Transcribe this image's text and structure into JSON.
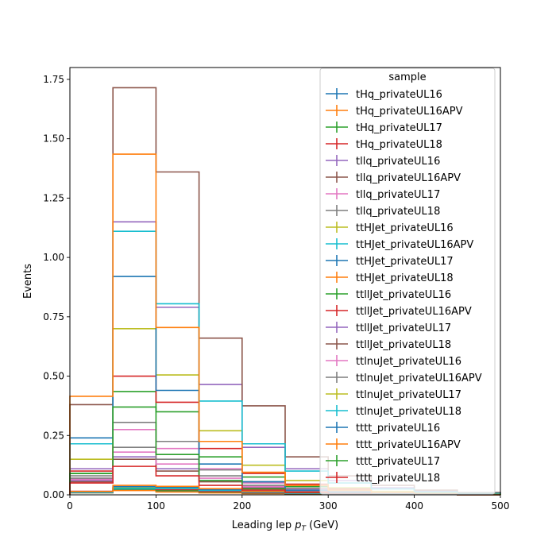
{
  "chart_data": {
    "type": "step-histogram",
    "xlabel_main": "Leading lep ",
    "xlabel_math_base": "p",
    "xlabel_math_sub": "T",
    "xlabel_unit": " (GeV)",
    "ylabel": "Events",
    "xlim": [
      0,
      500
    ],
    "ylim": [
      0,
      1.8
    ],
    "bin_edges": [
      0,
      50,
      100,
      150,
      200,
      250,
      300,
      350,
      400,
      450,
      500
    ],
    "x_ticks": [
      "0",
      "100",
      "200",
      "300",
      "400",
      "500"
    ],
    "y_ticks": [
      "0.00",
      "0.25",
      "0.50",
      "0.75",
      "1.00",
      "1.25",
      "1.50",
      "1.75"
    ],
    "legend_title": "sample",
    "legend_loc": "upper right",
    "series": [
      {
        "name": "tHq_privateUL16",
        "color": "#1f77b4",
        "values": [
          0.01,
          0.02,
          0.015,
          0.01,
          0.006,
          0.004,
          0.002,
          0.001,
          0.001,
          0.0
        ]
      },
      {
        "name": "tHq_privateUL16APV",
        "color": "#ff7f0e",
        "values": [
          0.008,
          0.018,
          0.012,
          0.008,
          0.005,
          0.003,
          0.002,
          0.001,
          0.001,
          0.0
        ]
      },
      {
        "name": "tHq_privateUL17",
        "color": "#2ca02c",
        "values": [
          0.012,
          0.025,
          0.018,
          0.012,
          0.007,
          0.004,
          0.002,
          0.001,
          0.001,
          0.0
        ]
      },
      {
        "name": "tHq_privateUL18",
        "color": "#d62728",
        "values": [
          0.015,
          0.03,
          0.022,
          0.014,
          0.008,
          0.005,
          0.003,
          0.002,
          0.001,
          0.001
        ]
      },
      {
        "name": "tllq_privateUL16",
        "color": "#9467bd",
        "values": [
          0.06,
          0.16,
          0.11,
          0.06,
          0.03,
          0.015,
          0.008,
          0.004,
          0.002,
          0.001
        ]
      },
      {
        "name": "tllq_privateUL16APV",
        "color": "#8c564b",
        "values": [
          0.055,
          0.15,
          0.1,
          0.055,
          0.028,
          0.014,
          0.007,
          0.004,
          0.002,
          0.001
        ]
      },
      {
        "name": "tllq_privateUL17",
        "color": "#e377c2",
        "values": [
          0.07,
          0.18,
          0.13,
          0.07,
          0.035,
          0.018,
          0.009,
          0.005,
          0.002,
          0.001
        ]
      },
      {
        "name": "tllq_privateUL18",
        "color": "#7f7f7f",
        "values": [
          0.08,
          0.2,
          0.15,
          0.08,
          0.04,
          0.02,
          0.01,
          0.005,
          0.003,
          0.001
        ]
      },
      {
        "name": "ttHJet_privateUL16",
        "color": "#bcbd22",
        "values": [
          0.01,
          0.03,
          0.028,
          0.02,
          0.012,
          0.007,
          0.004,
          0.002,
          0.001,
          0.001
        ]
      },
      {
        "name": "ttHJet_privateUL16APV",
        "color": "#17becf",
        "values": [
          0.009,
          0.028,
          0.026,
          0.018,
          0.011,
          0.006,
          0.004,
          0.002,
          0.001,
          0.001
        ]
      },
      {
        "name": "ttHJet_privateUL17",
        "color": "#1f77b4",
        "values": [
          0.012,
          0.035,
          0.032,
          0.022,
          0.013,
          0.008,
          0.005,
          0.003,
          0.001,
          0.001
        ]
      },
      {
        "name": "ttHJet_privateUL18",
        "color": "#ff7f0e",
        "values": [
          0.014,
          0.04,
          0.036,
          0.026,
          0.015,
          0.009,
          0.005,
          0.003,
          0.002,
          0.001
        ]
      },
      {
        "name": "ttllJet_privateUL16",
        "color": "#2ca02c",
        "values": [
          0.09,
          0.435,
          0.35,
          0.16,
          0.075,
          0.035,
          0.02,
          0.01,
          0.005,
          0.003
        ]
      },
      {
        "name": "ttllJet_privateUL16APV",
        "color": "#d62728",
        "values": [
          0.1,
          0.5,
          0.39,
          0.195,
          0.09,
          0.045,
          0.025,
          0.012,
          0.006,
          0.003
        ]
      },
      {
        "name": "ttllJet_privateUL17",
        "color": "#9467bd",
        "values": [
          0.11,
          1.15,
          0.79,
          0.465,
          0.2,
          0.11,
          0.06,
          0.03,
          0.015,
          0.008
        ]
      },
      {
        "name": "ttllJet_privateUL18",
        "color": "#8c564b",
        "values": [
          0.38,
          1.715,
          1.36,
          0.66,
          0.375,
          0.16,
          0.08,
          0.04,
          0.02,
          0.01
        ]
      },
      {
        "name": "ttlnuJet_privateUL16",
        "color": "#e377c2",
        "values": [
          0.065,
          0.275,
          0.195,
          0.11,
          0.05,
          0.025,
          0.012,
          0.006,
          0.003,
          0.002
        ]
      },
      {
        "name": "ttlnuJet_privateUL16APV",
        "color": "#7f7f7f",
        "values": [
          0.07,
          0.305,
          0.225,
          0.105,
          0.055,
          0.028,
          0.014,
          0.007,
          0.003,
          0.002
        ]
      },
      {
        "name": "ttlnuJet_privateUL17",
        "color": "#bcbd22",
        "values": [
          0.15,
          0.7,
          0.505,
          0.27,
          0.125,
          0.06,
          0.03,
          0.015,
          0.008,
          0.004
        ]
      },
      {
        "name": "ttlnuJet_privateUL18",
        "color": "#17becf",
        "values": [
          0.215,
          1.11,
          0.805,
          0.395,
          0.215,
          0.1,
          0.05,
          0.025,
          0.012,
          0.006
        ]
      },
      {
        "name": "tttt_privateUL16",
        "color": "#1f77b4",
        "values": [
          0.24,
          0.92,
          0.44,
          0.13,
          0.055,
          0.02,
          0.01,
          0.005,
          0.002,
          0.001
        ]
      },
      {
        "name": "tttt_privateUL16APV",
        "color": "#ff7f0e",
        "values": [
          0.415,
          1.435,
          0.705,
          0.225,
          0.095,
          0.04,
          0.02,
          0.01,
          0.005,
          0.002
        ]
      },
      {
        "name": "tttt_privateUL17",
        "color": "#2ca02c",
        "values": [
          0.09,
          0.37,
          0.17,
          0.06,
          0.025,
          0.01,
          0.005,
          0.002,
          0.001,
          0.001
        ]
      },
      {
        "name": "tttt_privateUL18",
        "color": "#d62728",
        "values": [
          0.05,
          0.12,
          0.08,
          0.04,
          0.02,
          0.01,
          0.005,
          0.002,
          0.001,
          0.0
        ]
      }
    ]
  }
}
